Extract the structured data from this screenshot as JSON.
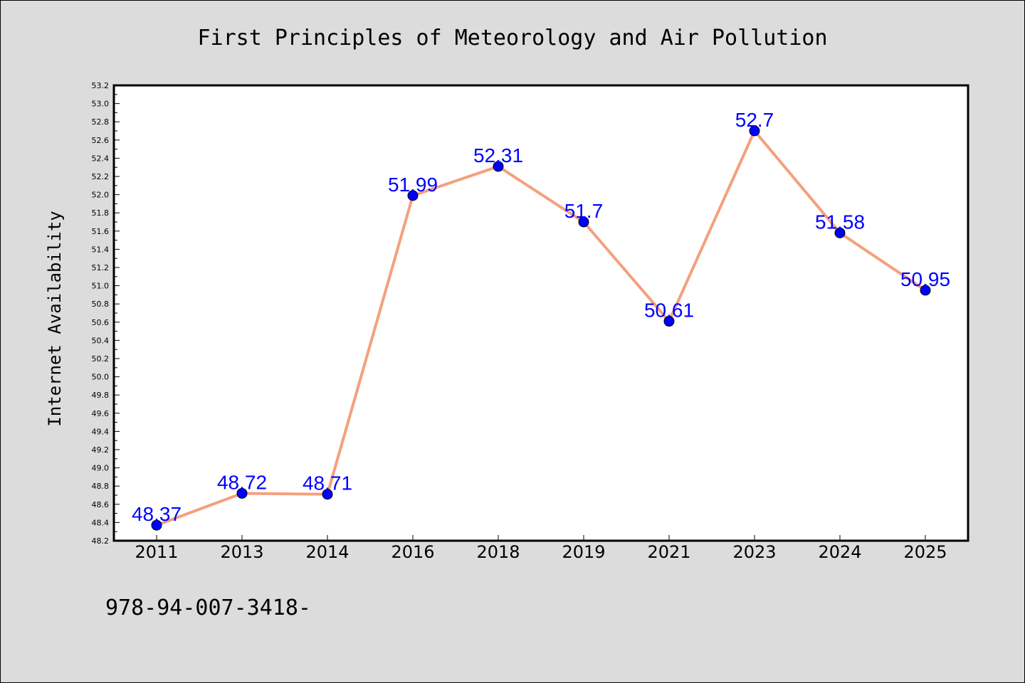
{
  "chart_data": {
    "type": "line",
    "title": "First Principles of Meteorology and Air Pollution",
    "xlabel": "",
    "ylabel": "Internet Availability",
    "categories": [
      "2011",
      "2013",
      "2014",
      "2016",
      "2018",
      "2019",
      "2021",
      "2023",
      "2024",
      "2025"
    ],
    "series": [
      {
        "values": [
          48.37,
          48.72,
          48.71,
          51.99,
          52.31,
          51.7,
          50.61,
          52.7,
          51.58,
          50.95
        ],
        "labels": [
          "48.37",
          "48.72",
          "48.71",
          "51.99",
          "52.31",
          "51.7",
          "50.61",
          "52.7",
          "51.58",
          "50.95"
        ],
        "line_color": "#f4a07e",
        "marker_color": "#0000ff"
      }
    ],
    "ylim": [
      48.2,
      53.2
    ],
    "yticks": [
      "48.2",
      "48.4",
      "48.6",
      "48.8",
      "49.0",
      "49.2",
      "49.4",
      "49.6",
      "49.8",
      "50.0",
      "50.2",
      "50.4",
      "50.6",
      "50.8",
      "51.0",
      "51.2",
      "51.4",
      "51.6",
      "51.8",
      "52.0",
      "52.2",
      "52.4",
      "52.6",
      "52.8",
      "53.0",
      "53.2"
    ],
    "grid": false,
    "legend": "none"
  },
  "footer_text": "978-94-007-3418-",
  "colors": {
    "background": "#dcdcdc",
    "plot_background": "#ffffff",
    "label_color": "#0000ff"
  }
}
